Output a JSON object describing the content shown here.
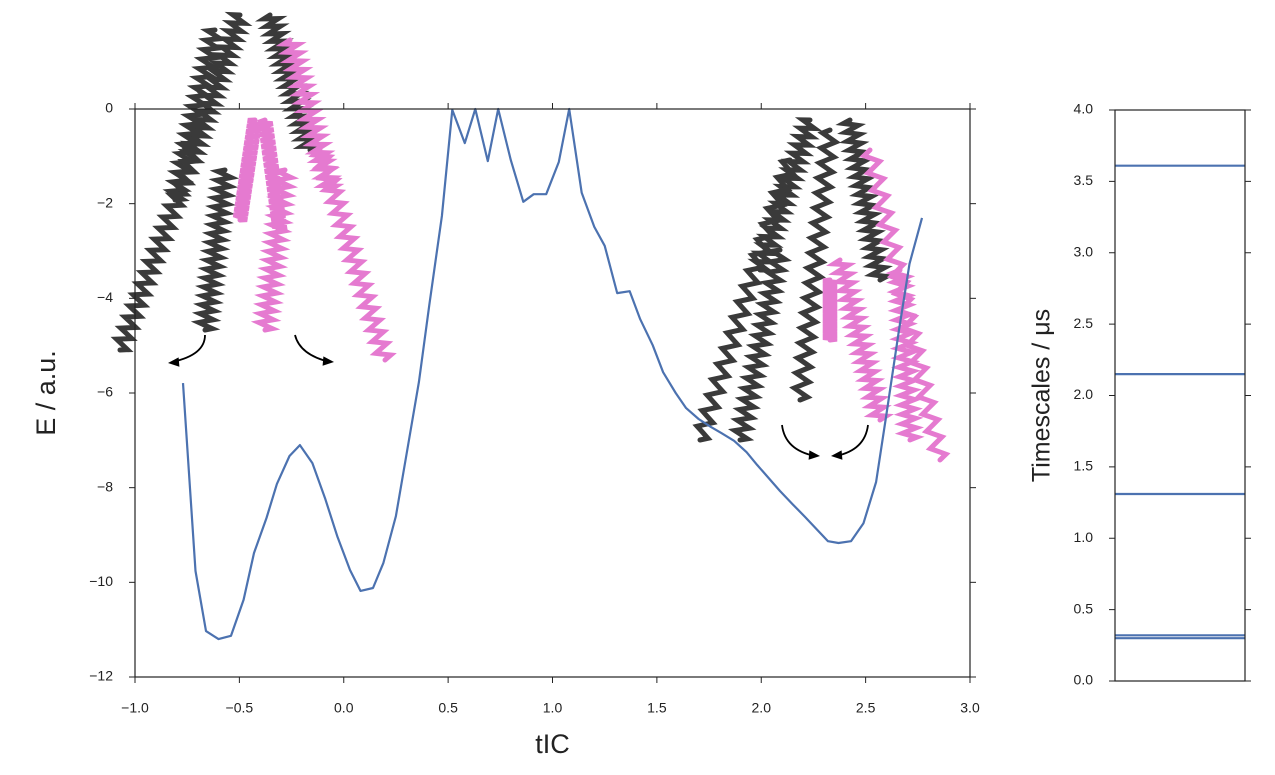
{
  "chart_data": [
    {
      "type": "line",
      "xlabel": "tIC",
      "ylabel": "E / a.u.",
      "x": [
        -0.77,
        -0.71,
        -0.66,
        -0.6,
        -0.54,
        -0.48,
        -0.43,
        -0.37,
        -0.32,
        -0.26,
        -0.21,
        -0.15,
        -0.09,
        -0.03,
        0.03,
        0.08,
        0.14,
        0.19,
        0.25,
        0.3,
        0.36,
        0.41,
        0.47,
        0.52,
        0.58,
        0.63,
        0.69,
        0.74,
        0.8,
        0.86,
        0.91,
        0.97,
        1.03,
        1.08,
        1.14,
        1.2,
        1.25,
        1.31,
        1.37,
        1.42,
        1.48,
        1.53,
        1.59,
        1.64,
        1.7,
        1.76,
        1.81,
        1.87,
        1.93,
        1.98,
        2.04,
        2.09,
        2.15,
        2.21,
        2.27,
        2.32,
        2.37,
        2.43,
        2.49,
        2.55,
        2.6,
        2.66,
        2.71,
        2.77
      ],
      "series": [
        {
          "color": "#4c72b0",
          "values": [
            -5.79,
            -9.76,
            -11.03,
            -11.2,
            -11.13,
            -10.37,
            -9.38,
            -8.64,
            -7.92,
            -7.33,
            -7.1,
            -7.48,
            -8.22,
            -9.04,
            -9.74,
            -10.18,
            -10.12,
            -9.59,
            -8.6,
            -7.31,
            -5.77,
            -4.14,
            -2.26,
            -0.02,
            -0.72,
            0,
            -1.1,
            0,
            -1.08,
            -1.96,
            -1.8,
            -1.8,
            -1.12,
            0,
            -1.77,
            -2.49,
            -2.89,
            -3.89,
            -3.85,
            -4.44,
            -4.99,
            -5.56,
            -6.0,
            -6.32,
            -6.55,
            -6.72,
            -6.85,
            -7.01,
            -7.25,
            -7.52,
            -7.82,
            -8.07,
            -8.35,
            -8.62,
            -8.9,
            -9.13,
            -9.17,
            -9.13,
            -8.75,
            -7.88,
            -6.44,
            -4.67,
            -3.27,
            -2.3
          ]
        }
      ],
      "xlim": [
        -1.0,
        3.0
      ],
      "ylim": [
        -12,
        0
      ],
      "xticks": [
        {
          "value": -1.0,
          "label": "−1.0"
        },
        {
          "value": -0.5,
          "label": "−0.5"
        },
        {
          "value": 0,
          "label": "0.0"
        },
        {
          "value": 0.5,
          "label": "0.5"
        },
        {
          "value": 1.0,
          "label": "1.0"
        },
        {
          "value": 1.5,
          "label": "1.5"
        },
        {
          "value": 2.0,
          "label": "2.0"
        },
        {
          "value": 2.5,
          "label": "2.5"
        },
        {
          "value": 3.0,
          "label": "3.0"
        }
      ],
      "yticks": [
        {
          "value": -12,
          "label": "−12"
        },
        {
          "value": -10,
          "label": "−10"
        },
        {
          "value": -8,
          "label": "−8"
        },
        {
          "value": -6,
          "label": "−6"
        },
        {
          "value": -4,
          "label": "−4"
        },
        {
          "value": -2,
          "label": "−2"
        },
        0
      ]
    },
    {
      "type": "hlines",
      "ylabel": "Timescales / μs",
      "color": "#4c72b0",
      "values": [
        3.61,
        2.15,
        1.31,
        0.32,
        0.3
      ],
      "ylim": [
        0,
        4.0
      ],
      "yticks": [
        {
          "value": 0,
          "label": "0.0"
        },
        {
          "value": 0.5,
          "label": "0.5"
        },
        {
          "value": 1.0,
          "label": "1.0"
        },
        {
          "value": 1.5,
          "label": "1.5"
        },
        {
          "value": 2.0,
          "label": "2.0"
        },
        {
          "value": 2.5,
          "label": "2.5"
        },
        {
          "value": 3.0,
          "label": "3.0"
        },
        {
          "value": 3.5,
          "label": "3.5"
        },
        {
          "value": 4.0,
          "label": "4.0"
        }
      ]
    }
  ]
}
